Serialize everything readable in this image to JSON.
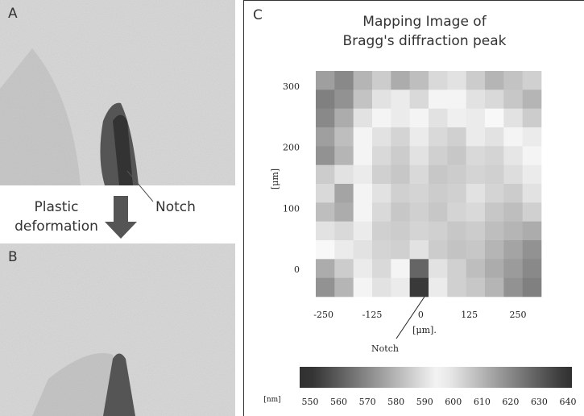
{
  "figure": {
    "panel_a_label": "A",
    "panel_b_label": "B",
    "arrow_label": [
      "Plastic",
      "deformation"
    ],
    "notch_label": "Notch"
  },
  "chart_data": {
    "type": "heatmap",
    "panel_label": "C",
    "title": [
      "Mapping Image of",
      "Bragg's diffraction peak"
    ],
    "x_label": "[μm].",
    "y_label": "[μm]",
    "annotation": "Notch",
    "colorbar_label": "[nm]",
    "xlim": [
      -270,
      310
    ],
    "ylim": [
      -45,
      325
    ],
    "xticks": [
      -250,
      -125,
      0,
      125,
      250
    ],
    "yticks": [
      0,
      100,
      200,
      300
    ],
    "clim": [
      550,
      640
    ],
    "cticks": [
      550,
      560,
      570,
      580,
      590,
      600,
      610,
      620,
      630,
      640
    ],
    "z": [
      [
        575,
        570,
        580,
        585,
        578,
        582,
        588,
        590,
        585,
        580,
        583,
        586
      ],
      [
        568,
        572,
        583,
        590,
        592,
        588,
        594,
        596,
        590,
        588,
        584,
        580
      ],
      [
        570,
        578,
        590,
        596,
        598,
        594,
        600,
        597,
        592,
        595,
        590,
        585
      ],
      [
        575,
        582,
        594,
        600,
        603,
        598,
        602,
        604,
        598,
        600,
        596,
        592
      ],
      [
        572,
        580,
        596,
        602,
        605,
        600,
        604,
        606,
        602,
        603,
        599,
        596
      ],
      [
        585,
        590,
        598,
        604,
        606,
        602,
        606,
        605,
        603,
        604,
        601,
        598
      ],
      [
        588,
        576,
        596,
        600,
        604,
        603,
        605,
        604,
        600,
        603,
        605,
        600
      ],
      [
        582,
        578,
        594,
        602,
        606,
        604,
        606,
        603,
        602,
        606,
        608,
        604
      ],
      [
        590,
        588,
        598,
        604,
        605,
        603,
        604,
        606,
        605,
        608,
        610,
        612
      ],
      [
        595,
        592,
        600,
        603,
        604,
        600,
        605,
        607,
        606,
        610,
        614,
        618
      ],
      [
        578,
        585,
        598,
        602,
        596,
        562,
        600,
        604,
        608,
        612,
        616,
        620
      ],
      [
        572,
        580,
        594,
        600,
        592,
        552,
        598,
        604,
        606,
        610,
        618,
        622
      ]
    ]
  }
}
